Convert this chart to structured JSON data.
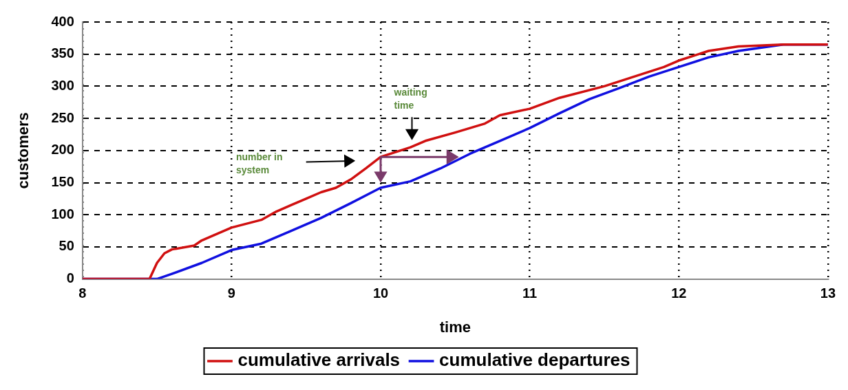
{
  "chart_data": {
    "type": "line",
    "xlabel": "time",
    "ylabel": "customers",
    "xlim": [
      8,
      13
    ],
    "xticks": [
      8,
      9,
      10,
      11,
      12,
      13
    ],
    "ylim": [
      0,
      400
    ],
    "yticks": [
      0,
      50,
      100,
      150,
      200,
      250,
      300,
      350,
      400
    ],
    "grid": true,
    "legend": "bottom",
    "marker": "none",
    "line_style": "solid",
    "series": [
      {
        "name": "cumulative arrivals",
        "color": "#d01010",
        "x": [
          8,
          8.45,
          8.5,
          8.55,
          8.6,
          8.75,
          8.8,
          9,
          9.2,
          9.3,
          9.4,
          9.5,
          9.6,
          9.7,
          9.8,
          9.9,
          10,
          10.2,
          10.3,
          10.5,
          10.7,
          10.8,
          11,
          11.2,
          11.5,
          11.7,
          11.9,
          12,
          12.2,
          12.4,
          12.7,
          13
        ],
        "values": [
          0,
          0,
          25,
          40,
          46,
          52,
          60,
          80,
          92,
          105,
          115,
          125,
          135,
          142,
          155,
          172,
          190,
          205,
          215,
          228,
          242,
          255,
          265,
          282,
          300,
          315,
          330,
          340,
          355,
          362,
          365,
          365
        ]
      },
      {
        "name": "cumulative departures",
        "color": "#1010e0",
        "x": [
          8,
          8.5,
          8.6,
          8.8,
          9,
          9.2,
          9.4,
          9.6,
          9.8,
          10,
          10.2,
          10.4,
          10.6,
          10.8,
          11,
          11.2,
          11.4,
          11.6,
          11.8,
          12,
          12.2,
          12.4,
          12.7,
          13
        ],
        "values": [
          0,
          0,
          8,
          25,
          45,
          55,
          75,
          95,
          118,
          142,
          152,
          172,
          195,
          215,
          235,
          258,
          280,
          297,
          315,
          330,
          345,
          355,
          365,
          365
        ]
      }
    ],
    "annotations": [
      "number in system",
      "waiting time"
    ]
  }
}
